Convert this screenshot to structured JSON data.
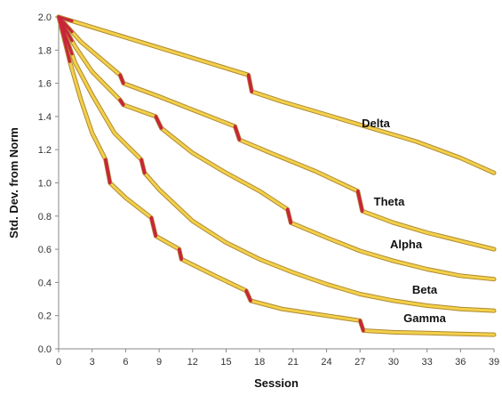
{
  "chart_data": {
    "type": "line",
    "title": "",
    "xlabel": "Session",
    "ylabel": "Std. Dev. from Norm",
    "xlim": [
      0,
      39
    ],
    "ylim": [
      0,
      2.0
    ],
    "x_ticks": [
      "0",
      "3",
      "6",
      "9",
      "12",
      "15",
      "18",
      "21",
      "24",
      "27",
      "30",
      "33",
      "36",
      "39"
    ],
    "y_ticks": [
      "0.0",
      "0.2",
      "0.4",
      "0.6",
      "0.8",
      "1.0",
      "1.2",
      "1.4",
      "1.6",
      "1.8",
      "2.0"
    ],
    "grid": false,
    "legend": "none (labels placed next to curves)",
    "colors": {
      "line_fill": "#f2d04a",
      "line_edge": "#b08a32",
      "drop": "#c8243a",
      "axis": "#888888"
    },
    "series": [
      {
        "name": "Delta",
        "points": [
          [
            0,
            2.0
          ],
          [
            17,
            1.65
          ],
          [
            17.3,
            1.55
          ],
          [
            20,
            1.49
          ],
          [
            24,
            1.41
          ],
          [
            28,
            1.33
          ],
          [
            32,
            1.25
          ],
          [
            36,
            1.15
          ],
          [
            39,
            1.06
          ]
        ]
      },
      {
        "name": "Theta",
        "points": [
          [
            0,
            2.0
          ],
          [
            2,
            1.85
          ],
          [
            5.5,
            1.65
          ],
          [
            5.8,
            1.6
          ],
          [
            9,
            1.52
          ],
          [
            12,
            1.44
          ],
          [
            15.8,
            1.34
          ],
          [
            16.2,
            1.26
          ],
          [
            19,
            1.18
          ],
          [
            23,
            1.07
          ],
          [
            26.8,
            0.95
          ],
          [
            27.2,
            0.83
          ],
          [
            30,
            0.76
          ],
          [
            33,
            0.7
          ],
          [
            36,
            0.65
          ],
          [
            39,
            0.6
          ]
        ]
      },
      {
        "name": "Alpha",
        "points": [
          [
            0,
            2.0
          ],
          [
            1.5,
            1.82
          ],
          [
            3,
            1.67
          ],
          [
            5.5,
            1.5
          ],
          [
            5.8,
            1.47
          ],
          [
            8.7,
            1.4
          ],
          [
            9.2,
            1.33
          ],
          [
            12,
            1.18
          ],
          [
            15,
            1.06
          ],
          [
            18,
            0.95
          ],
          [
            20.5,
            0.84
          ],
          [
            20.8,
            0.76
          ],
          [
            24,
            0.67
          ],
          [
            27,
            0.59
          ],
          [
            30,
            0.53
          ],
          [
            33,
            0.48
          ],
          [
            36,
            0.44
          ],
          [
            39,
            0.42
          ]
        ]
      },
      {
        "name": "Beta",
        "points": [
          [
            0,
            2.0
          ],
          [
            1.5,
            1.72
          ],
          [
            3,
            1.53
          ],
          [
            5,
            1.3
          ],
          [
            7.4,
            1.14
          ],
          [
            7.7,
            1.06
          ],
          [
            9,
            0.96
          ],
          [
            12,
            0.77
          ],
          [
            15,
            0.64
          ],
          [
            18,
            0.54
          ],
          [
            21,
            0.46
          ],
          [
            24,
            0.39
          ],
          [
            27,
            0.33
          ],
          [
            30,
            0.29
          ],
          [
            33,
            0.26
          ],
          [
            36,
            0.24
          ],
          [
            39,
            0.23
          ]
        ]
      },
      {
        "name": "Gamma",
        "points": [
          [
            0,
            2.0
          ],
          [
            1,
            1.73
          ],
          [
            2,
            1.5
          ],
          [
            3,
            1.3
          ],
          [
            4.2,
            1.14
          ],
          [
            4.6,
            1.0
          ],
          [
            6,
            0.91
          ],
          [
            8.3,
            0.79
          ],
          [
            8.7,
            0.68
          ],
          [
            10.8,
            0.6
          ],
          [
            11,
            0.54
          ],
          [
            14,
            0.44
          ],
          [
            16.8,
            0.35
          ],
          [
            17.2,
            0.29
          ],
          [
            20,
            0.24
          ],
          [
            24,
            0.2
          ],
          [
            27,
            0.17
          ],
          [
            27.3,
            0.11
          ],
          [
            30,
            0.1
          ],
          [
            33,
            0.095
          ],
          [
            36,
            0.09
          ],
          [
            39,
            0.085
          ]
        ]
      }
    ]
  }
}
